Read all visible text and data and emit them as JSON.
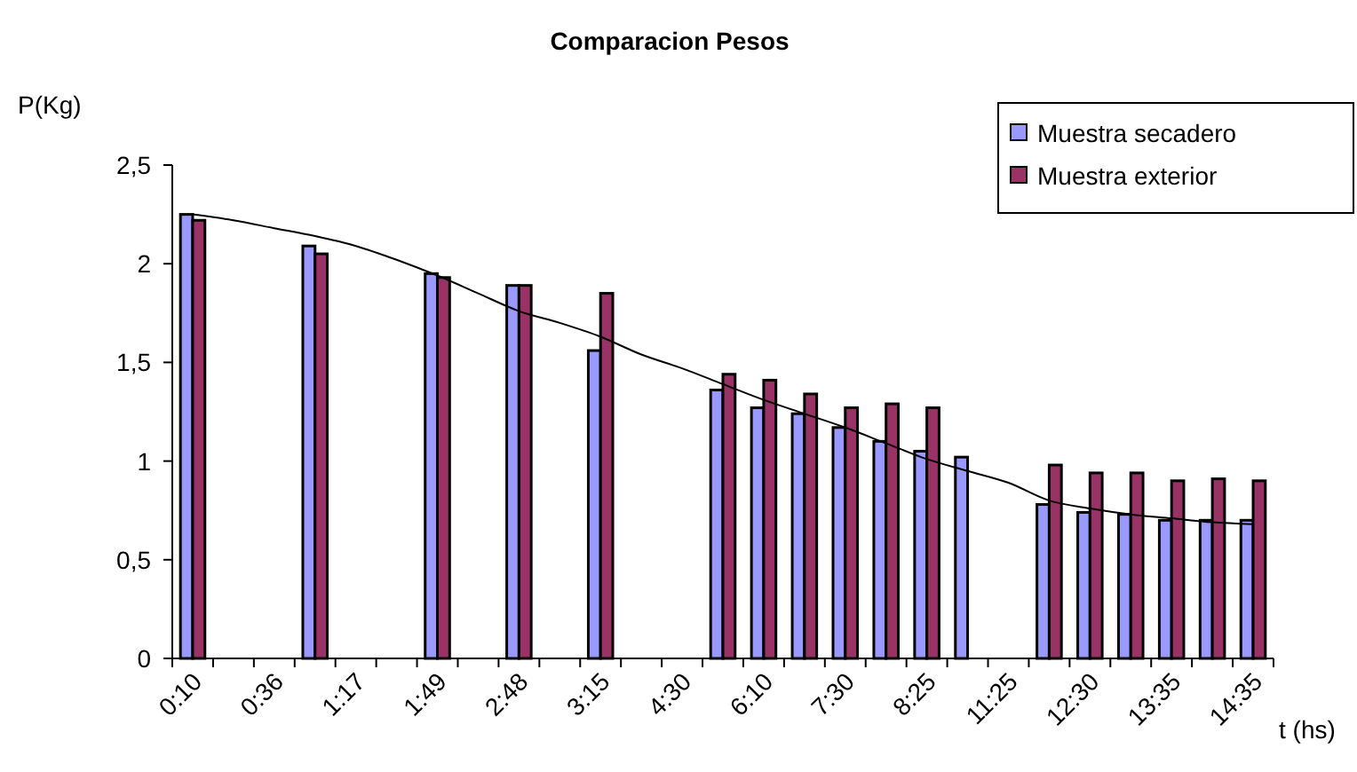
{
  "chart_data": {
    "type": "bar",
    "title": "Comparacion Pesos",
    "xlabel": "t (hs)",
    "ylabel": "P(Kg)",
    "categories": [
      "0:10",
      null,
      "0:36",
      null,
      "1:17",
      null,
      "1:49",
      null,
      "2:48",
      null,
      "3:15",
      null,
      "4:30",
      null,
      "6:10",
      null,
      "7:30",
      null,
      "8:25",
      null,
      "11:25",
      null,
      "12:30",
      null,
      "13:35",
      null,
      "14:35"
    ],
    "series": [
      {
        "name": "Muestra secadero",
        "color": "#9999ff",
        "values": [
          2.25,
          null,
          null,
          2.09,
          null,
          null,
          1.95,
          null,
          1.89,
          null,
          1.56,
          null,
          null,
          1.36,
          1.27,
          1.24,
          1.17,
          1.1,
          1.05,
          1.02,
          null,
          0.78,
          0.74,
          0.73,
          0.7,
          0.7,
          0.7
        ]
      },
      {
        "name": "Muestra exterior",
        "color": "#993366",
        "values": [
          2.22,
          null,
          null,
          2.05,
          null,
          null,
          1.93,
          null,
          1.89,
          null,
          1.85,
          null,
          null,
          1.44,
          1.41,
          1.34,
          1.27,
          1.29,
          1.27,
          null,
          null,
          0.98,
          0.94,
          0.94,
          0.9,
          0.91,
          0.9
        ]
      },
      {
        "type": "line",
        "color": "#000000",
        "marker": "none",
        "values": [
          2.25,
          2.22,
          2.18,
          2.14,
          2.09,
          2.02,
          1.94,
          1.85,
          1.76,
          1.7,
          1.63,
          1.54,
          1.47,
          1.39,
          1.31,
          1.24,
          1.17,
          1.09,
          1.01,
          0.95,
          0.89,
          0.8,
          0.76,
          0.73,
          0.71,
          0.69,
          0.68
        ]
      }
    ],
    "ylim": [
      0,
      2.5
    ],
    "yticks": [
      0,
      {
        "value": 0.5,
        "label": "0,5"
      },
      1,
      {
        "value": 1.5,
        "label": "1,5"
      },
      2,
      {
        "value": 2.5,
        "label": "2,5"
      }
    ],
    "legend": "top right"
  }
}
